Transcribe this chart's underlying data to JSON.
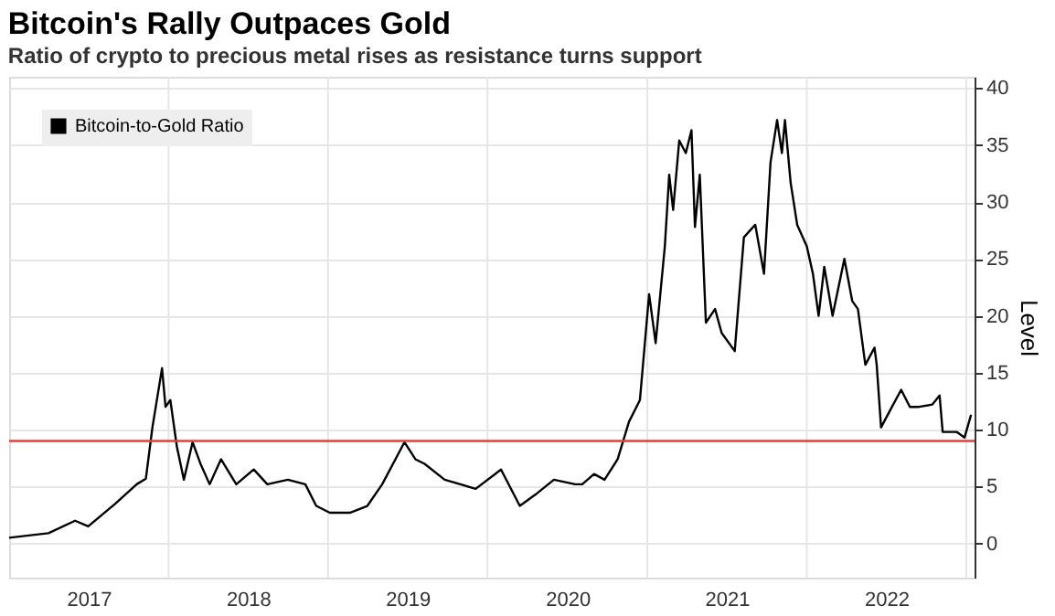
{
  "chart_data": {
    "type": "line",
    "title": "Bitcoin's Rally Outpaces Gold",
    "subtitle": "Ratio of crypto to precious metal rises as resistance turns support",
    "ylabel": "Level",
    "x": [
      "2017-01-01",
      "2017-04-01",
      "2017-06-01",
      "2017-07-01",
      "2017-09-01",
      "2017-10-20",
      "2017-11-10",
      "2017-11-25",
      "2017-12-17",
      "2017-12-25",
      "2018-01-05",
      "2018-01-20",
      "2018-02-05",
      "2018-02-25",
      "2018-03-15",
      "2018-04-05",
      "2018-05-01",
      "2018-06-05",
      "2018-07-15",
      "2018-08-15",
      "2018-10-01",
      "2018-11-10",
      "2018-12-05",
      "2019-01-05",
      "2019-02-20",
      "2019-04-01",
      "2019-05-05",
      "2019-06-25",
      "2019-07-20",
      "2019-08-10",
      "2019-09-25",
      "2019-12-05",
      "2020-02-01",
      "2020-03-15",
      "2020-04-20",
      "2020-06-01",
      "2020-07-20",
      "2020-08-05",
      "2020-09-01",
      "2020-09-25",
      "2020-10-25",
      "2020-11-20",
      "2020-12-15",
      "2021-01-05",
      "2021-01-20",
      "2021-02-10",
      "2021-02-20",
      "2021-03-01",
      "2021-03-15",
      "2021-03-30",
      "2021-04-12",
      "2021-04-20",
      "2021-05-01",
      "2021-05-15",
      "2021-06-05",
      "2021-06-20",
      "2021-07-20",
      "2021-08-10",
      "2021-09-05",
      "2021-09-25",
      "2021-10-10",
      "2021-10-25",
      "2021-11-05",
      "2021-11-12",
      "2021-11-25",
      "2021-12-10",
      "2022-01-01",
      "2022-01-15",
      "2022-01-28",
      "2022-02-10",
      "2022-03-01",
      "2022-03-28",
      "2022-04-15",
      "2022-04-28",
      "2022-05-15",
      "2022-06-05",
      "2022-06-10",
      "2022-06-20",
      "2022-07-15",
      "2022-08-05",
      "2022-08-25",
      "2022-09-15",
      "2022-10-15",
      "2022-11-01",
      "2022-11-08",
      "2022-12-10",
      "2022-12-28",
      "2023-01-12"
    ],
    "series": [
      {
        "name": "Bitcoin-to-Gold Ratio",
        "color": "#000000",
        "values": [
          0.5,
          0.9,
          2.0,
          1.5,
          3.5,
          5.2,
          5.7,
          10.2,
          15.4,
          12.0,
          12.6,
          8.5,
          5.6,
          8.9,
          7.0,
          5.2,
          7.4,
          5.2,
          6.5,
          5.2,
          5.6,
          5.2,
          3.3,
          2.7,
          2.7,
          3.3,
          5.2,
          8.9,
          7.4,
          7.0,
          5.6,
          4.8,
          6.5,
          3.3,
          4.3,
          5.6,
          5.2,
          5.2,
          6.1,
          5.6,
          7.4,
          10.7,
          12.6,
          21.9,
          17.6,
          26.1,
          32.4,
          29.3,
          35.4,
          34.3,
          36.3,
          27.8,
          32.4,
          19.4,
          20.6,
          18.5,
          16.9,
          26.9,
          28.0,
          23.7,
          33.5,
          37.2,
          34.3,
          37.2,
          31.7,
          28.0,
          26.1,
          23.7,
          20.0,
          24.3,
          20.0,
          25.0,
          21.3,
          20.6,
          15.7,
          17.2,
          15.7,
          10.2,
          12.0,
          13.5,
          12.0,
          12.0,
          12.2,
          13.0,
          9.8,
          9.8,
          9.3,
          11.3
        ]
      }
    ],
    "xlim": [
      "2017-01-01",
      "2023-01-20"
    ],
    "xticks": [
      {
        "value": "2017-07-02",
        "label": "2017"
      },
      {
        "value": "2018-01-01",
        "label": null
      },
      {
        "value": "2018-07-02",
        "label": "2018"
      },
      {
        "value": "2019-01-01",
        "label": null
      },
      {
        "value": "2019-07-02",
        "label": "2019"
      },
      {
        "value": "2020-01-01",
        "label": null
      },
      {
        "value": "2020-07-02",
        "label": "2020"
      },
      {
        "value": "2021-01-01",
        "label": null
      },
      {
        "value": "2021-07-02",
        "label": "2021"
      },
      {
        "value": "2022-01-01",
        "label": null
      },
      {
        "value": "2022-07-02",
        "label": "2022"
      },
      {
        "value": "2023-01-01",
        "label": null
      }
    ],
    "ylim": [
      -3,
      41
    ],
    "yticks": [
      0,
      5,
      10,
      15,
      20,
      25,
      30,
      35,
      40
    ],
    "ref_lines": [
      {
        "axis": "y",
        "value": 9,
        "color": "#e0403a"
      }
    ],
    "grid": true,
    "legend": "top left",
    "line_style": "solid",
    "marker": "none"
  }
}
